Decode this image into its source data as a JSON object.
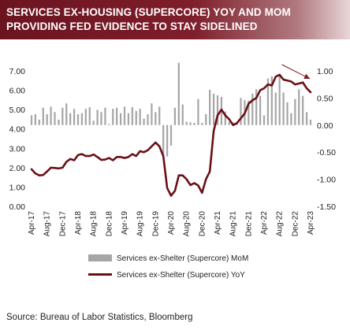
{
  "header": {
    "title_line1": "SERVICES EX-HOUSING (SUPERCORE) YOY AND MOM",
    "title_line2": "PROVIDING FED EVIDENCE TO STAY SIDELINED"
  },
  "footer": {
    "source": "Source:  Bureau of Labor Statistics,  Bloomberg"
  },
  "colors": {
    "banner": "#7e1e2a",
    "line": "#6b0f16",
    "bars": "#a6a6a6",
    "arrow": "#7a1a22"
  },
  "chart_data": {
    "type": "bar+line",
    "x": [
      "Apr-17",
      "May-17",
      "Jun-17",
      "Jul-17",
      "Aug-17",
      "Sep-17",
      "Oct-17",
      "Nov-17",
      "Dec-17",
      "Jan-18",
      "Feb-18",
      "Mar-18",
      "Apr-18",
      "May-18",
      "Jun-18",
      "Jul-18",
      "Aug-18",
      "Sep-18",
      "Oct-18",
      "Nov-18",
      "Dec-18",
      "Jan-19",
      "Feb-19",
      "Mar-19",
      "Apr-19",
      "May-19",
      "Jun-19",
      "Jul-19",
      "Aug-19",
      "Sep-19",
      "Oct-19",
      "Nov-19",
      "Dec-19",
      "Jan-20",
      "Feb-20",
      "Mar-20",
      "Apr-20",
      "May-20",
      "Jun-20",
      "Jul-20",
      "Aug-20",
      "Sep-20",
      "Oct-20",
      "Nov-20",
      "Dec-20",
      "Jan-21",
      "Feb-21",
      "Mar-21",
      "Apr-21",
      "May-21",
      "Jun-21",
      "Jul-21",
      "Aug-21",
      "Sep-21",
      "Oct-21",
      "Nov-21",
      "Dec-21",
      "Jan-22",
      "Feb-22",
      "Mar-22",
      "Apr-22",
      "May-22",
      "Jun-22",
      "Jul-22",
      "Aug-22",
      "Sep-22",
      "Oct-22",
      "Nov-22",
      "Dec-22",
      "Jan-23",
      "Feb-23",
      "Mar-23",
      "Apr-23"
    ],
    "x_tick_labels": [
      "Apr-17",
      "Aug-17",
      "Dec-17",
      "Apr-18",
      "Aug-18",
      "Dec-18",
      "Apr-19",
      "Aug-19",
      "Dec-19",
      "Apr-20",
      "Aug-20",
      "Dec-20",
      "Apr-21",
      "Aug-21",
      "Dec-21",
      "Apr-22",
      "Aug-22",
      "Dec-22",
      "Apr-23"
    ],
    "series": [
      {
        "name": "Services ex-Shelter (Supercore) MoM",
        "type": "bar",
        "axis": "right",
        "values": [
          0.18,
          0.2,
          0.1,
          0.32,
          0.2,
          0.34,
          0.24,
          0.1,
          0.32,
          0.4,
          0.22,
          0.3,
          0.2,
          0.22,
          0.3,
          0.33,
          0.08,
          0.28,
          0.24,
          0.32,
          0.02,
          0.3,
          0.32,
          0.22,
          0.34,
          0.22,
          0.33,
          0.26,
          0.3,
          0.12,
          0.2,
          0.4,
          0.24,
          0.34,
          -0.55,
          -0.58,
          -0.38,
          0.32,
          1.15,
          0.38,
          0.06,
          0.05,
          0.04,
          0.48,
          0.04,
          0.2,
          0.65,
          0.58,
          0.55,
          0.52,
          0.25,
          0.06,
          0.05,
          0.02,
          0.5,
          0.46,
          0.45,
          0.58,
          0.66,
          0.54,
          0.18,
          0.86,
          0.9,
          0.6,
          0.94,
          0.6,
          0.42,
          0.22,
          0.48,
          0.66,
          0.54,
          0.24,
          0.1
        ]
      },
      {
        "name": "Services ex-Shelter (Supercore) YoY",
        "type": "line",
        "axis": "left",
        "values": [
          1.92,
          1.7,
          1.6,
          1.62,
          1.8,
          2.0,
          1.98,
          1.96,
          2.0,
          2.3,
          2.45,
          2.38,
          2.65,
          2.7,
          2.6,
          2.6,
          2.68,
          2.55,
          2.4,
          2.42,
          2.5,
          2.38,
          2.55,
          2.55,
          2.5,
          2.55,
          2.7,
          2.6,
          2.85,
          2.8,
          2.9,
          3.1,
          3.3,
          3.1,
          2.6,
          0.95,
          0.55,
          0.8,
          1.6,
          1.6,
          1.4,
          1.1,
          1.2,
          1.08,
          0.7,
          1.4,
          1.8,
          3.9,
          4.7,
          5.0,
          4.7,
          4.5,
          4.2,
          4.3,
          4.55,
          4.8,
          5.3,
          5.48,
          5.6,
          6.0,
          6.1,
          6.3,
          6.25,
          6.7,
          6.8,
          6.55,
          6.5,
          6.45,
          6.3,
          6.35,
          6.4,
          6.1,
          5.9
        ]
      }
    ],
    "y_left": {
      "min": 0,
      "max": 7,
      "ticks": [
        "0.00",
        "1.00",
        "2.00",
        "3.00",
        "4.00",
        "5.00",
        "6.00",
        "7.00"
      ]
    },
    "y_right": {
      "min": -1.5,
      "max": 1.0,
      "ticks": [
        "-1.50",
        "-1.00",
        "-0.50",
        "0.00",
        "0.50",
        "1.00"
      ]
    },
    "grid": false,
    "legend_position": "bottom",
    "annotation": "downward arrow near the end of the YoY line"
  }
}
